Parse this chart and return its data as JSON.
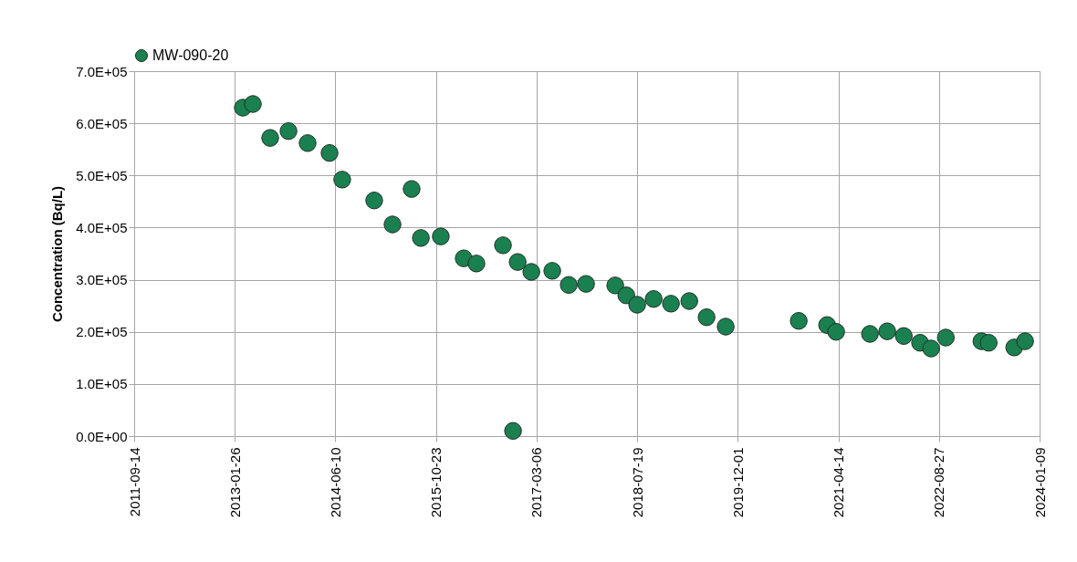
{
  "chart_data": {
    "type": "scatter",
    "ylabel": "Concentration (Bq/L)",
    "legend": "top",
    "grid": true,
    "marker": "circle",
    "x": [
      "2013-03-07",
      "2013-04-26",
      "2013-07-21",
      "2013-10-20",
      "2014-01-23",
      "2014-05-12",
      "2014-07-14",
      "2014-12-20",
      "2015-03-21",
      "2015-06-24",
      "2015-08-09",
      "2015-11-16",
      "2016-03-09",
      "2016-05-11",
      "2016-09-20",
      "2016-11-09",
      "2016-12-02",
      "2017-02-08",
      "2017-05-23",
      "2017-08-13",
      "2017-11-07",
      "2018-04-01",
      "2018-05-26",
      "2018-07-19",
      "2018-10-09",
      "2019-01-03",
      "2019-04-04",
      "2019-06-29",
      "2019-10-02",
      "2020-09-29",
      "2021-02-17",
      "2021-04-03",
      "2021-09-18",
      "2021-12-13",
      "2022-03-05",
      "2022-05-25",
      "2022-07-19",
      "2022-09-30",
      "2023-03-26",
      "2023-05-01",
      "2023-09-05",
      "2023-10-29"
    ],
    "series": [
      {
        "name": "MW-090-20",
        "color": "#1a8050",
        "values": [
          630000,
          637000,
          572000,
          585000,
          562000,
          543000,
          492000,
          452000,
          406000,
          474000,
          380000,
          383000,
          341000,
          331000,
          366000,
          10000,
          334000,
          315000,
          317000,
          290000,
          292000,
          289000,
          270000,
          252000,
          263000,
          254000,
          259000,
          228000,
          210000,
          221000,
          213000,
          200000,
          196000,
          201000,
          192000,
          179000,
          168000,
          189000,
          182000,
          179000,
          170000,
          182000
        ]
      }
    ],
    "xlim": [
      "2011-09-14",
      "2024-01-09"
    ],
    "xticks": [
      "2011-09-14",
      "2013-01-26",
      "2014-06-10",
      "2015-10-23",
      "2017-03-06",
      "2018-07-19",
      "2019-12-01",
      "2021-04-14",
      "2022-08-27",
      "2024-01-09"
    ],
    "ylim": [
      0,
      700000
    ],
    "yticks": [
      {
        "value": 0,
        "label": "0.0E+00"
      },
      {
        "value": 100000,
        "label": "1.0E+05"
      },
      {
        "value": 200000,
        "label": "2.0E+05"
      },
      {
        "value": 300000,
        "label": "3.0E+05"
      },
      {
        "value": 400000,
        "label": "4.0E+05"
      },
      {
        "value": 500000,
        "label": "5.0E+05"
      },
      {
        "value": 600000,
        "label": "6.0E+05"
      },
      {
        "value": 700000,
        "label": "7.0E+05"
      }
    ]
  }
}
